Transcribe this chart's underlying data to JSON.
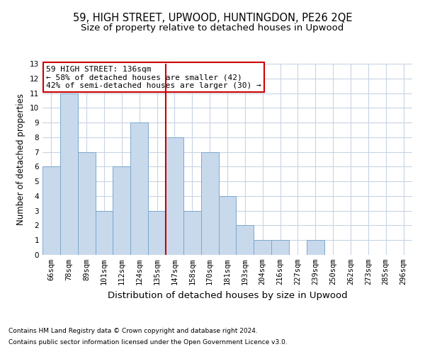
{
  "title1": "59, HIGH STREET, UPWOOD, HUNTINGDON, PE26 2QE",
  "title2": "Size of property relative to detached houses in Upwood",
  "xlabel": "Distribution of detached houses by size in Upwood",
  "ylabel": "Number of detached properties",
  "bar_labels": [
    "66sqm",
    "78sqm",
    "89sqm",
    "101sqm",
    "112sqm",
    "124sqm",
    "135sqm",
    "147sqm",
    "158sqm",
    "170sqm",
    "181sqm",
    "193sqm",
    "204sqm",
    "216sqm",
    "227sqm",
    "239sqm",
    "250sqm",
    "262sqm",
    "273sqm",
    "285sqm",
    "296sqm"
  ],
  "bar_values": [
    6,
    11,
    7,
    3,
    6,
    9,
    3,
    8,
    3,
    7,
    4,
    2,
    1,
    1,
    0,
    1,
    0,
    0,
    0,
    0,
    0
  ],
  "bar_color": "#c9d9ec",
  "bar_edgecolor": "#7aa8ce",
  "vline_x": 6.5,
  "vline_color": "#cc0000",
  "annotation_text": "59 HIGH STREET: 136sqm\n← 58% of detached houses are smaller (42)\n42% of semi-detached houses are larger (30) →",
  "annotation_box_edgecolor": "#cc0000",
  "ylim": [
    0,
    13
  ],
  "yticks": [
    0,
    1,
    2,
    3,
    4,
    5,
    6,
    7,
    8,
    9,
    10,
    11,
    12,
    13
  ],
  "footnote1": "Contains HM Land Registry data © Crown copyright and database right 2024.",
  "footnote2": "Contains public sector information licensed under the Open Government Licence v3.0.",
  "bg_color": "#ffffff",
  "grid_color": "#c8d4e3",
  "title1_fontsize": 10.5,
  "title2_fontsize": 9.5,
  "xlabel_fontsize": 9.5,
  "ylabel_fontsize": 8.5,
  "tick_fontsize": 7.5,
  "annot_fontsize": 8.0,
  "footnote_fontsize": 6.5
}
